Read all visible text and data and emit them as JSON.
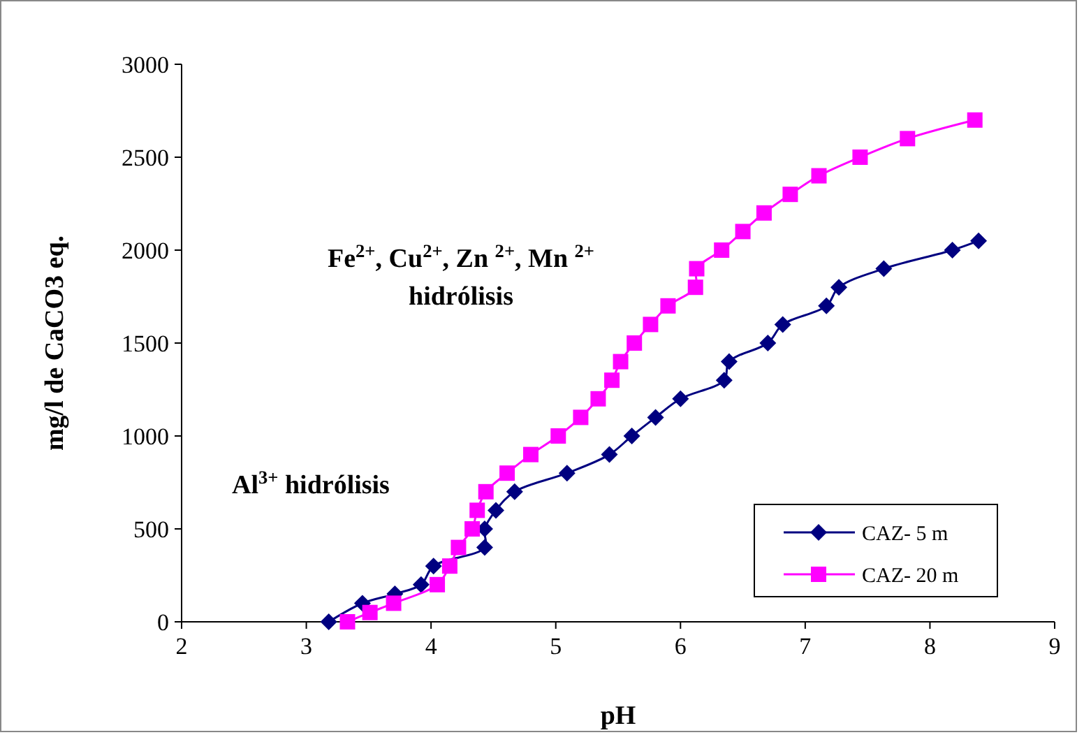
{
  "chart_data": {
    "type": "line",
    "xlabel": "pH",
    "ylabel": "mg/l de CaCO3 eq.",
    "xlim": [
      2,
      9
    ],
    "xticks": [
      2,
      3,
      4,
      5,
      6,
      7,
      8,
      9
    ],
    "ylim": [
      0,
      3000
    ],
    "yticks": [
      0,
      500,
      1000,
      1500,
      2000,
      2500,
      3000
    ],
    "legend": "bottom right",
    "grid": false,
    "line_style": "solid",
    "annotations": [
      "Fe$^{2+}$, Cu$^{2+}$, Zn $^{2+}$, Mn $^{2+}$",
      "hidrólisis",
      "Al$^{3+}$ hidrólisis"
    ],
    "series": [
      {
        "name": "CAZ- 5 m",
        "color": "#000080",
        "marker": "diamond",
        "x": [
          3.18,
          3.45,
          3.71,
          3.92,
          4.02,
          4.43,
          4.43,
          4.52,
          4.67,
          5.09,
          5.43,
          5.61,
          5.8,
          6.0,
          6.35,
          6.39,
          6.7,
          6.82,
          7.17,
          7.27,
          7.63,
          8.18,
          8.39
        ],
        "values": [
          0,
          100,
          150,
          200,
          300,
          400,
          500,
          600,
          700,
          800,
          900,
          1000,
          1100,
          1200,
          1300,
          1400,
          1500,
          1600,
          1700,
          1800,
          1900,
          2000,
          2050
        ]
      },
      {
        "name": "CAZ- 20 m",
        "color": "#ff00ff",
        "marker": "square",
        "x": [
          3.33,
          3.51,
          3.7,
          4.05,
          4.15,
          4.22,
          4.33,
          4.37,
          4.44,
          4.61,
          4.8,
          5.02,
          5.2,
          5.34,
          5.45,
          5.52,
          5.63,
          5.76,
          5.9,
          6.12,
          6.13,
          6.33,
          6.5,
          6.67,
          6.88,
          7.11,
          7.44,
          7.82,
          8.36
        ],
        "values": [
          0,
          50,
          100,
          200,
          300,
          400,
          500,
          600,
          700,
          800,
          900,
          1000,
          1100,
          1200,
          1300,
          1400,
          1500,
          1600,
          1700,
          1800,
          1900,
          2000,
          2100,
          2200,
          2300,
          2400,
          2500,
          2600,
          2700
        ]
      }
    ]
  }
}
